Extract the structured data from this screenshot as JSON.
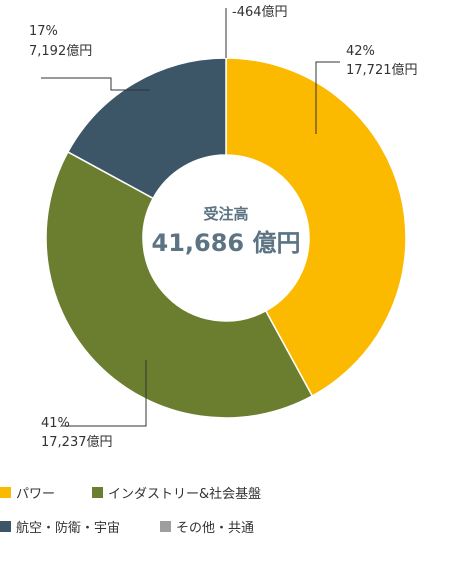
{
  "chart_data": {
    "type": "pie",
    "title": "",
    "center": {
      "label": "受注高",
      "value": "41,686 億円"
    },
    "slices": [
      {
        "name": "パワー",
        "value": 17721,
        "percent_label": "42%",
        "value_label": "17,721億円",
        "color": "#fbb900"
      },
      {
        "name": "インダストリー&社会基盤",
        "value": 17237,
        "percent_label": "41%",
        "value_label": "17,237億円",
        "color": "#6b7d2e"
      },
      {
        "name": "航空・防衛・宇宙",
        "value": 7192,
        "percent_label": "17%",
        "value_label": "7,192億円",
        "color": "#3c5667"
      },
      {
        "name": "その他・共通",
        "value": -464,
        "percent_label": "",
        "value_label": "-464億円",
        "color": "#9e9e9e"
      }
    ],
    "legend_position": "bottom-left"
  }
}
